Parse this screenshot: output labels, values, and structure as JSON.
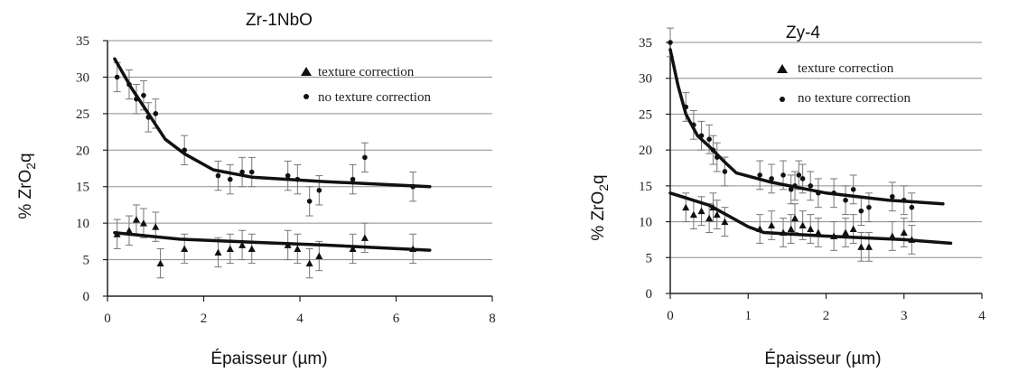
{
  "colors": {
    "ink": "#111111",
    "grid": "#8c8c8c",
    "error_bar": "#777777"
  },
  "chart_data": [
    {
      "type": "scatter",
      "title": "Zr-1NbO",
      "xlabel": "Épaisseur (µm)",
      "ylabel": {
        "prefix": "% ZrO",
        "sub": "2",
        "suffix": "q"
      },
      "xlim": [
        0,
        8
      ],
      "ylim": [
        0,
        35
      ],
      "xticks": [
        "0",
        "2",
        "4",
        "6",
        "8"
      ],
      "yticks": [
        "0",
        "5",
        "10",
        "15",
        "20",
        "25",
        "30",
        "35"
      ],
      "grid": "horizontal",
      "legend_position": "top-right",
      "series": [
        {
          "name": "texture correction",
          "marker": "triangle",
          "points": [
            [
              0.2,
              8.5
            ],
            [
              0.45,
              9
            ],
            [
              0.6,
              10.5
            ],
            [
              0.75,
              10
            ],
            [
              1,
              9.5
            ],
            [
              1.1,
              4.5
            ],
            [
              1.6,
              6.5
            ],
            [
              2.3,
              6
            ],
            [
              2.55,
              6.5
            ],
            [
              2.8,
              7
            ],
            [
              3,
              6.5
            ],
            [
              3.75,
              7
            ],
            [
              3.95,
              6.5
            ],
            [
              4.2,
              4.5
            ],
            [
              4.4,
              5.5
            ],
            [
              5.1,
              6.5
            ],
            [
              5.35,
              8
            ],
            [
              6.35,
              6.5
            ]
          ],
          "error": 2
        },
        {
          "name": "no texture correction",
          "marker": "dot",
          "points": [
            [
              0.2,
              30
            ],
            [
              0.45,
              29
            ],
            [
              0.6,
              27
            ],
            [
              0.75,
              27.5
            ],
            [
              0.85,
              24.5
            ],
            [
              1,
              25
            ],
            [
              1.6,
              20
            ],
            [
              2.3,
              16.5
            ],
            [
              2.55,
              16
            ],
            [
              2.8,
              17
            ],
            [
              3,
              17
            ],
            [
              3.75,
              16.5
            ],
            [
              3.95,
              16
            ],
            [
              4.2,
              13
            ],
            [
              4.4,
              14.5
            ],
            [
              5.1,
              16
            ],
            [
              5.35,
              19
            ],
            [
              6.35,
              15
            ]
          ],
          "error": 2
        }
      ],
      "fits": [
        {
          "points": [
            [
              0.15,
              32.5
            ],
            [
              0.5,
              28.5
            ],
            [
              0.85,
              25
            ],
            [
              1.2,
              21.5
            ],
            [
              1.6,
              19.5
            ],
            [
              2.2,
              17.3
            ],
            [
              3,
              16.3
            ],
            [
              4.5,
              15.7
            ],
            [
              6.7,
              15
            ]
          ]
        },
        {
          "points": [
            [
              0.15,
              8.7
            ],
            [
              1.5,
              7.8
            ],
            [
              3,
              7.4
            ],
            [
              4.5,
              7
            ],
            [
              6.7,
              6.3
            ]
          ]
        }
      ]
    },
    {
      "type": "scatter",
      "title": "Zy-4",
      "xlabel": "Épaisseur (µm)",
      "ylabel": {
        "prefix": "% ZrO",
        "sub": "2",
        "suffix": "q"
      },
      "xlim": [
        0,
        4
      ],
      "ylim": [
        0,
        35
      ],
      "xticks": [
        "0",
        "1",
        "2",
        "3",
        "4"
      ],
      "yticks": [
        "0",
        "5",
        "10",
        "15",
        "20",
        "25",
        "30",
        "35"
      ],
      "grid": "horizontal",
      "legend_position": "top-right",
      "series": [
        {
          "name": "texture correction",
          "marker": "triangle",
          "points": [
            [
              0.2,
              12
            ],
            [
              0.3,
              11
            ],
            [
              0.4,
              11.5
            ],
            [
              0.5,
              10.5
            ],
            [
              0.55,
              12
            ],
            [
              0.6,
              11
            ],
            [
              0.7,
              10
            ],
            [
              1.15,
              9
            ],
            [
              1.3,
              9.5
            ],
            [
              1.45,
              8.5
            ],
            [
              1.55,
              9
            ],
            [
              1.6,
              10.5
            ],
            [
              1.7,
              9.5
            ],
            [
              1.8,
              9
            ],
            [
              1.9,
              8.5
            ],
            [
              2.1,
              8
            ],
            [
              2.25,
              8.5
            ],
            [
              2.35,
              9
            ],
            [
              2.45,
              6.5
            ],
            [
              2.55,
              6.5
            ],
            [
              2.85,
              8
            ],
            [
              3,
              8.5
            ],
            [
              3.1,
              7.5
            ]
          ],
          "error": 2
        },
        {
          "name": "no texture correction",
          "marker": "dot",
          "points": [
            [
              0,
              35
            ],
            [
              0.2,
              26
            ],
            [
              0.3,
              23.5
            ],
            [
              0.4,
              22
            ],
            [
              0.5,
              21.5
            ],
            [
              0.55,
              20
            ],
            [
              0.6,
              19
            ],
            [
              0.7,
              17
            ],
            [
              1.15,
              16.5
            ],
            [
              1.3,
              16
            ],
            [
              1.45,
              16.5
            ],
            [
              1.55,
              14.5
            ],
            [
              1.6,
              15
            ],
            [
              1.65,
              16.5
            ],
            [
              1.7,
              16
            ],
            [
              1.8,
              15
            ],
            [
              1.9,
              14
            ],
            [
              2.1,
              14
            ],
            [
              2.25,
              13
            ],
            [
              2.35,
              14.5
            ],
            [
              2.45,
              11.5
            ],
            [
              2.55,
              12
            ],
            [
              2.85,
              13.5
            ],
            [
              3,
              13
            ],
            [
              3.1,
              12
            ]
          ],
          "error": 2
        }
      ],
      "fits": [
        {
          "points": [
            [
              0,
              34
            ],
            [
              0.1,
              29
            ],
            [
              0.2,
              25
            ],
            [
              0.35,
              22
            ],
            [
              0.5,
              20.5
            ],
            [
              0.7,
              18.3
            ],
            [
              0.85,
              16.8
            ],
            [
              1.3,
              15.5
            ],
            [
              2,
              14
            ],
            [
              2.8,
              13
            ],
            [
              3.5,
              12.5
            ]
          ]
        },
        {
          "points": [
            [
              0,
              14
            ],
            [
              0.5,
              12.3
            ],
            [
              1,
              9.3
            ],
            [
              1.2,
              8.5
            ],
            [
              2,
              8
            ],
            [
              3,
              7.5
            ],
            [
              3.6,
              7
            ]
          ]
        }
      ]
    }
  ]
}
